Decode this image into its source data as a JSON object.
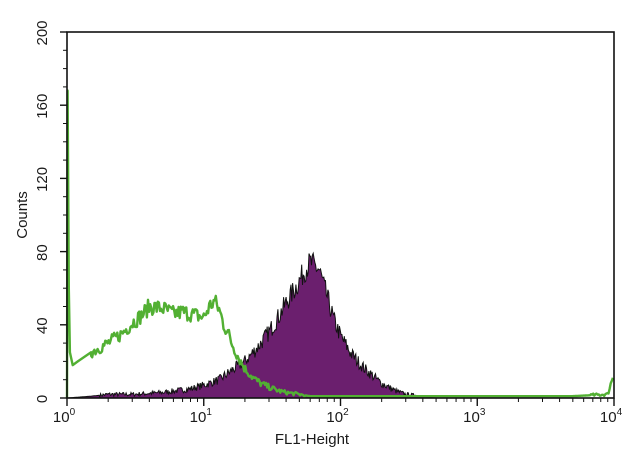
{
  "chart_data": {
    "type": "area",
    "xlabel": "FL1-Height",
    "ylabel": "Counts",
    "x_scale": "log",
    "xlim": [
      1,
      10000
    ],
    "ylim": [
      0,
      200
    ],
    "x_ticks": [
      {
        "value": 1,
        "base": "10",
        "exp": "0"
      },
      {
        "value": 10,
        "base": "10",
        "exp": "1"
      },
      {
        "value": 100,
        "base": "10",
        "exp": "2"
      },
      {
        "value": 1000,
        "base": "10",
        "exp": "3"
      },
      {
        "value": 10000,
        "base": "10",
        "exp": "4"
      }
    ],
    "y_ticks": [
      "0",
      "40",
      "80",
      "120",
      "160",
      "200"
    ],
    "grid": false,
    "legend": "none",
    "series": [
      {
        "style": "filled",
        "fill_color": "#6b1f6e",
        "line_color": "#111111",
        "x": [
          1,
          1.5,
          2,
          3,
          5,
          8,
          10,
          13,
          16,
          20,
          25,
          30,
          35,
          40,
          45,
          50,
          55,
          60,
          65,
          70,
          75,
          80,
          90,
          100,
          120,
          150,
          200,
          250,
          300,
          400,
          500,
          700,
          1000,
          10000
        ],
        "y": [
          0,
          1,
          2,
          2,
          3,
          5,
          7,
          10,
          15,
          20,
          28,
          36,
          44,
          52,
          58,
          64,
          70,
          74,
          72,
          70,
          62,
          55,
          42,
          34,
          24,
          16,
          8,
          4,
          2,
          1,
          0,
          0,
          0,
          0
        ]
      },
      {
        "style": "line",
        "line_color": "#52b033",
        "x": [
          1,
          1.01,
          1.03,
          1.05,
          1.1,
          1.2,
          1.5,
          2,
          2.5,
          3,
          3.5,
          4,
          5,
          6,
          7,
          8,
          9,
          10,
          11,
          12,
          13,
          14,
          15,
          16,
          18,
          20,
          23,
          26,
          30,
          35,
          40,
          50,
          60,
          80,
          100,
          150,
          200,
          300,
          500,
          1000,
          2000,
          5000,
          9000,
          9500,
          10000
        ],
        "y": [
          0,
          168,
          60,
          25,
          18,
          20,
          25,
          30,
          35,
          41,
          45,
          50,
          49,
          46,
          47,
          46,
          45,
          44,
          50,
          53,
          48,
          40,
          36,
          30,
          22,
          16,
          11,
          8,
          6,
          4,
          3,
          2,
          1,
          1,
          1,
          1,
          1,
          1,
          1,
          1,
          1,
          1,
          2,
          8,
          14
        ]
      }
    ]
  }
}
